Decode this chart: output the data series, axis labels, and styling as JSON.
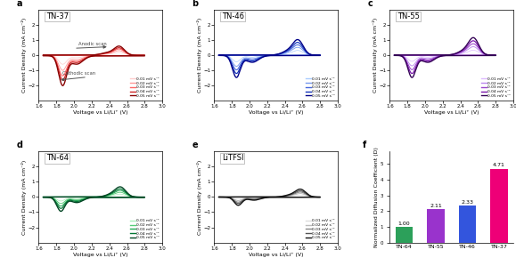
{
  "panels": [
    "a",
    "b",
    "c",
    "d",
    "e",
    "f"
  ],
  "panel_labels": {
    "a": "TN-37",
    "b": "TN-46",
    "c": "TN-55",
    "d": "TN-64",
    "e": "LiTFSI"
  },
  "scan_rates": [
    "0.01 mV s⁻¹",
    "0.02 mV s⁻¹",
    "0.03 mV s⁻¹",
    "0.04 mV s⁻¹",
    "0.05 mV s⁻¹"
  ],
  "colors_a": [
    "#ffcccc",
    "#ff9999",
    "#ff6666",
    "#cc2222",
    "#880000"
  ],
  "colors_b": [
    "#aaccff",
    "#7799ee",
    "#4466dd",
    "#1133bb",
    "#000088"
  ],
  "colors_c": [
    "#ddbbff",
    "#bb88ee",
    "#9944cc",
    "#7711aa",
    "#330055"
  ],
  "colors_d": [
    "#aaeebb",
    "#55cc77",
    "#22aa55",
    "#007733",
    "#004422"
  ],
  "colors_e": [
    "#dddddd",
    "#bbbbbb",
    "#888888",
    "#555555",
    "#111111"
  ],
  "bar_categories": [
    "TN-64",
    "TN-55",
    "TN-46",
    "TN-37"
  ],
  "bar_values": [
    1.0,
    2.11,
    2.33,
    4.71
  ],
  "bar_colors": [
    "#2ca05a",
    "#9933cc",
    "#3355dd",
    "#ee0077"
  ],
  "ylabel_cv": "Current Density (mA cm⁻²)",
  "xlabel_cv": "Voltage vs Li/Li⁺ (V)",
  "ylabel_bar": "Normalized Diffusion Coefficient (D)",
  "ylim_cv": [
    -3,
    3
  ],
  "xlim_cv": [
    1.6,
    3.0
  ],
  "anodic_arrow_text": "Anodic scan",
  "cathodic_arrow_text": "Cathodic scan"
}
